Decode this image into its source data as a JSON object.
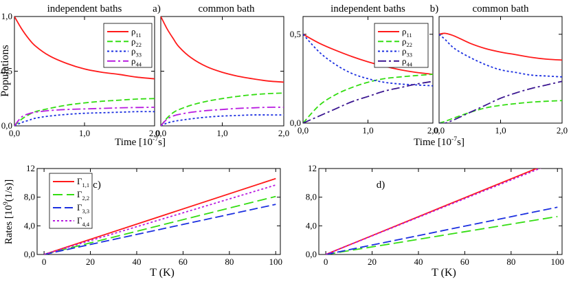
{
  "chart_data": [
    {
      "type": "line",
      "title": "independent baths",
      "panel_label": "",
      "ylabel": "Populations",
      "xlabel": "Time [10^-7 s]",
      "xlim": [
        0,
        2
      ],
      "ylim": [
        0,
        1
      ],
      "xticks": [
        "0,0",
        "1,0",
        "2,0"
      ],
      "yticks": [
        "0,0",
        "0,5",
        "1,0"
      ],
      "legend": "top-right",
      "x": [
        0,
        0.1,
        0.2,
        0.3,
        0.5,
        0.75,
        1.0,
        1.25,
        1.5,
        1.75,
        2.0
      ],
      "series": [
        {
          "name": "ρ11",
          "color": "#ff1a1a",
          "dash": "solid",
          "values": [
            1.0,
            0.89,
            0.8,
            0.73,
            0.64,
            0.57,
            0.52,
            0.49,
            0.47,
            0.445,
            0.43
          ]
        },
        {
          "name": "ρ22",
          "color": "#33dd11",
          "dash": "8,4",
          "values": [
            0.0,
            0.06,
            0.1,
            0.13,
            0.16,
            0.19,
            0.21,
            0.225,
            0.235,
            0.245,
            0.25
          ]
        },
        {
          "name": "ρ33",
          "color": "#1a2ee0",
          "dash": "3,3",
          "values": [
            0.0,
            0.03,
            0.05,
            0.07,
            0.09,
            0.105,
            0.115,
            0.12,
            0.125,
            0.13,
            0.13
          ]
        },
        {
          "name": "ρ44",
          "color": "#b81ae0",
          "dash": "12,4,3,4",
          "values": [
            0.0,
            0.08,
            0.11,
            0.125,
            0.14,
            0.15,
            0.155,
            0.16,
            0.165,
            0.168,
            0.17
          ]
        }
      ]
    },
    {
      "type": "line",
      "title": "common bath",
      "panel_label": "a)",
      "ylabel": "",
      "xlabel": "",
      "xlim": [
        0,
        2
      ],
      "ylim": [
        0,
        1
      ],
      "xticks": [
        "0,0",
        "1,0",
        "2,0"
      ],
      "yticks": [],
      "x": [
        0,
        0.1,
        0.2,
        0.3,
        0.5,
        0.75,
        1.0,
        1.25,
        1.5,
        1.75,
        2.0
      ],
      "series": [
        {
          "color": "#ff1a1a",
          "dash": "solid",
          "values": [
            1.0,
            0.89,
            0.8,
            0.72,
            0.62,
            0.54,
            0.49,
            0.455,
            0.43,
            0.41,
            0.4
          ]
        },
        {
          "color": "#33dd11",
          "dash": "8,4",
          "values": [
            0.0,
            0.07,
            0.12,
            0.15,
            0.19,
            0.225,
            0.25,
            0.27,
            0.285,
            0.295,
            0.3
          ]
        },
        {
          "color": "#1a2ee0",
          "dash": "3,3",
          "values": [
            0.0,
            0.025,
            0.04,
            0.05,
            0.065,
            0.08,
            0.09,
            0.095,
            0.1,
            0.1,
            0.1
          ]
        },
        {
          "color": "#b81ae0",
          "dash": "12,4,3,4",
          "values": [
            0.0,
            0.06,
            0.09,
            0.105,
            0.125,
            0.14,
            0.15,
            0.16,
            0.165,
            0.17,
            0.17
          ]
        }
      ]
    },
    {
      "type": "line",
      "title": "independent baths",
      "panel_label": "",
      "ylabel": "",
      "xlabel": "Time [10^-7 s]",
      "xlim": [
        0,
        2
      ],
      "ylim": [
        0,
        0.6
      ],
      "xticks": [
        "0,0",
        "1,0",
        "2,0"
      ],
      "yticks": [
        "0,0",
        "0,5"
      ],
      "legend": "top-right",
      "x": [
        0,
        0.25,
        0.5,
        0.75,
        1.0,
        1.25,
        1.5,
        1.75,
        2.0
      ],
      "series": [
        {
          "name": "ρ11",
          "color": "#ff1a1a",
          "dash": "solid",
          "values": [
            0.5,
            0.45,
            0.41,
            0.375,
            0.345,
            0.32,
            0.3,
            0.285,
            0.275
          ]
        },
        {
          "name": "ρ22",
          "color": "#33dd11",
          "dash": "8,4",
          "values": [
            0.0,
            0.1,
            0.16,
            0.2,
            0.23,
            0.25,
            0.26,
            0.268,
            0.275
          ]
        },
        {
          "name": "ρ33",
          "color": "#1a2ee0",
          "dash": "3,3",
          "values": [
            0.5,
            0.4,
            0.33,
            0.28,
            0.25,
            0.23,
            0.22,
            0.215,
            0.21
          ]
        },
        {
          "name": "ρ44",
          "color": "#3a1590",
          "dash": "12,4,3,4",
          "values": [
            0.0,
            0.04,
            0.08,
            0.12,
            0.15,
            0.18,
            0.2,
            0.22,
            0.235
          ]
        }
      ]
    },
    {
      "type": "line",
      "title": "common bath",
      "panel_label": "b)",
      "ylabel": "",
      "xlabel": "",
      "xlim": [
        0,
        2
      ],
      "ylim": [
        0,
        0.6
      ],
      "xticks": [
        "0,0",
        "1,0",
        "2,0"
      ],
      "yticks": [],
      "x": [
        0,
        0.1,
        0.25,
        0.5,
        0.75,
        1.0,
        1.25,
        1.5,
        1.75,
        2.0
      ],
      "series": [
        {
          "color": "#ff1a1a",
          "dash": "solid",
          "values": [
            0.5,
            0.505,
            0.49,
            0.45,
            0.42,
            0.4,
            0.385,
            0.37,
            0.36,
            0.355
          ]
        },
        {
          "color": "#33dd11",
          "dash": "8,4",
          "values": [
            0.0,
            0.01,
            0.03,
            0.06,
            0.085,
            0.1,
            0.11,
            0.118,
            0.123,
            0.127
          ]
        },
        {
          "color": "#1a2ee0",
          "dash": "3,3",
          "values": [
            0.5,
            0.47,
            0.42,
            0.37,
            0.33,
            0.3,
            0.285,
            0.27,
            0.265,
            0.26
          ]
        },
        {
          "color": "#3a1590",
          "dash": "12,4,3,4",
          "values": [
            0.0,
            0.0,
            0.02,
            0.06,
            0.1,
            0.14,
            0.17,
            0.195,
            0.215,
            0.235
          ]
        }
      ]
    },
    {
      "type": "line",
      "title": "",
      "panel_label": "c)",
      "ylabel": "Rates [10^9 (1/s)]",
      "xlabel": "T (K)",
      "xlim": [
        -3,
        102
      ],
      "ylim": [
        0,
        12
      ],
      "xticks": [
        "0",
        "20",
        "40",
        "60",
        "80",
        "100"
      ],
      "yticks": [
        "0,0",
        "4,0",
        "8,0",
        "12"
      ],
      "legend": "top-left",
      "x": [
        0,
        100
      ],
      "series": [
        {
          "name": "Γ1,1",
          "color": "#ff1a1a",
          "dash": "solid",
          "values": [
            0,
            10.6
          ]
        },
        {
          "name": "Γ2,2",
          "color": "#33dd11",
          "dash": "14,6",
          "values": [
            0,
            8.1
          ]
        },
        {
          "name": "Γ3,3",
          "color": "#1a2ee0",
          "dash": "12,5",
          "values": [
            0,
            7.0
          ]
        },
        {
          "name": "Γ4,4",
          "color": "#b81ae0",
          "dash": "3,3",
          "values": [
            0,
            9.7
          ]
        }
      ]
    },
    {
      "type": "line",
      "title": "",
      "panel_label": "d)",
      "ylabel": "",
      "xlabel": "T (K)",
      "xlim": [
        -3,
        102
      ],
      "ylim": [
        0,
        12
      ],
      "xticks": [
        "0",
        "20",
        "40",
        "60",
        "80",
        "100"
      ],
      "yticks": [
        "0,0",
        "4,0",
        "8,0",
        "12"
      ],
      "x": [
        0,
        100
      ],
      "series": [
        {
          "color": "#ff1a1a",
          "dash": "solid",
          "values": [
            0,
            13.2
          ]
        },
        {
          "color": "#33dd11",
          "dash": "14,6",
          "values": [
            0,
            5.3
          ]
        },
        {
          "color": "#1a2ee0",
          "dash": "12,5",
          "values": [
            0,
            6.6
          ]
        },
        {
          "color": "#b81ae0",
          "dash": "3,3",
          "values": [
            0,
            13.0
          ]
        }
      ]
    }
  ]
}
